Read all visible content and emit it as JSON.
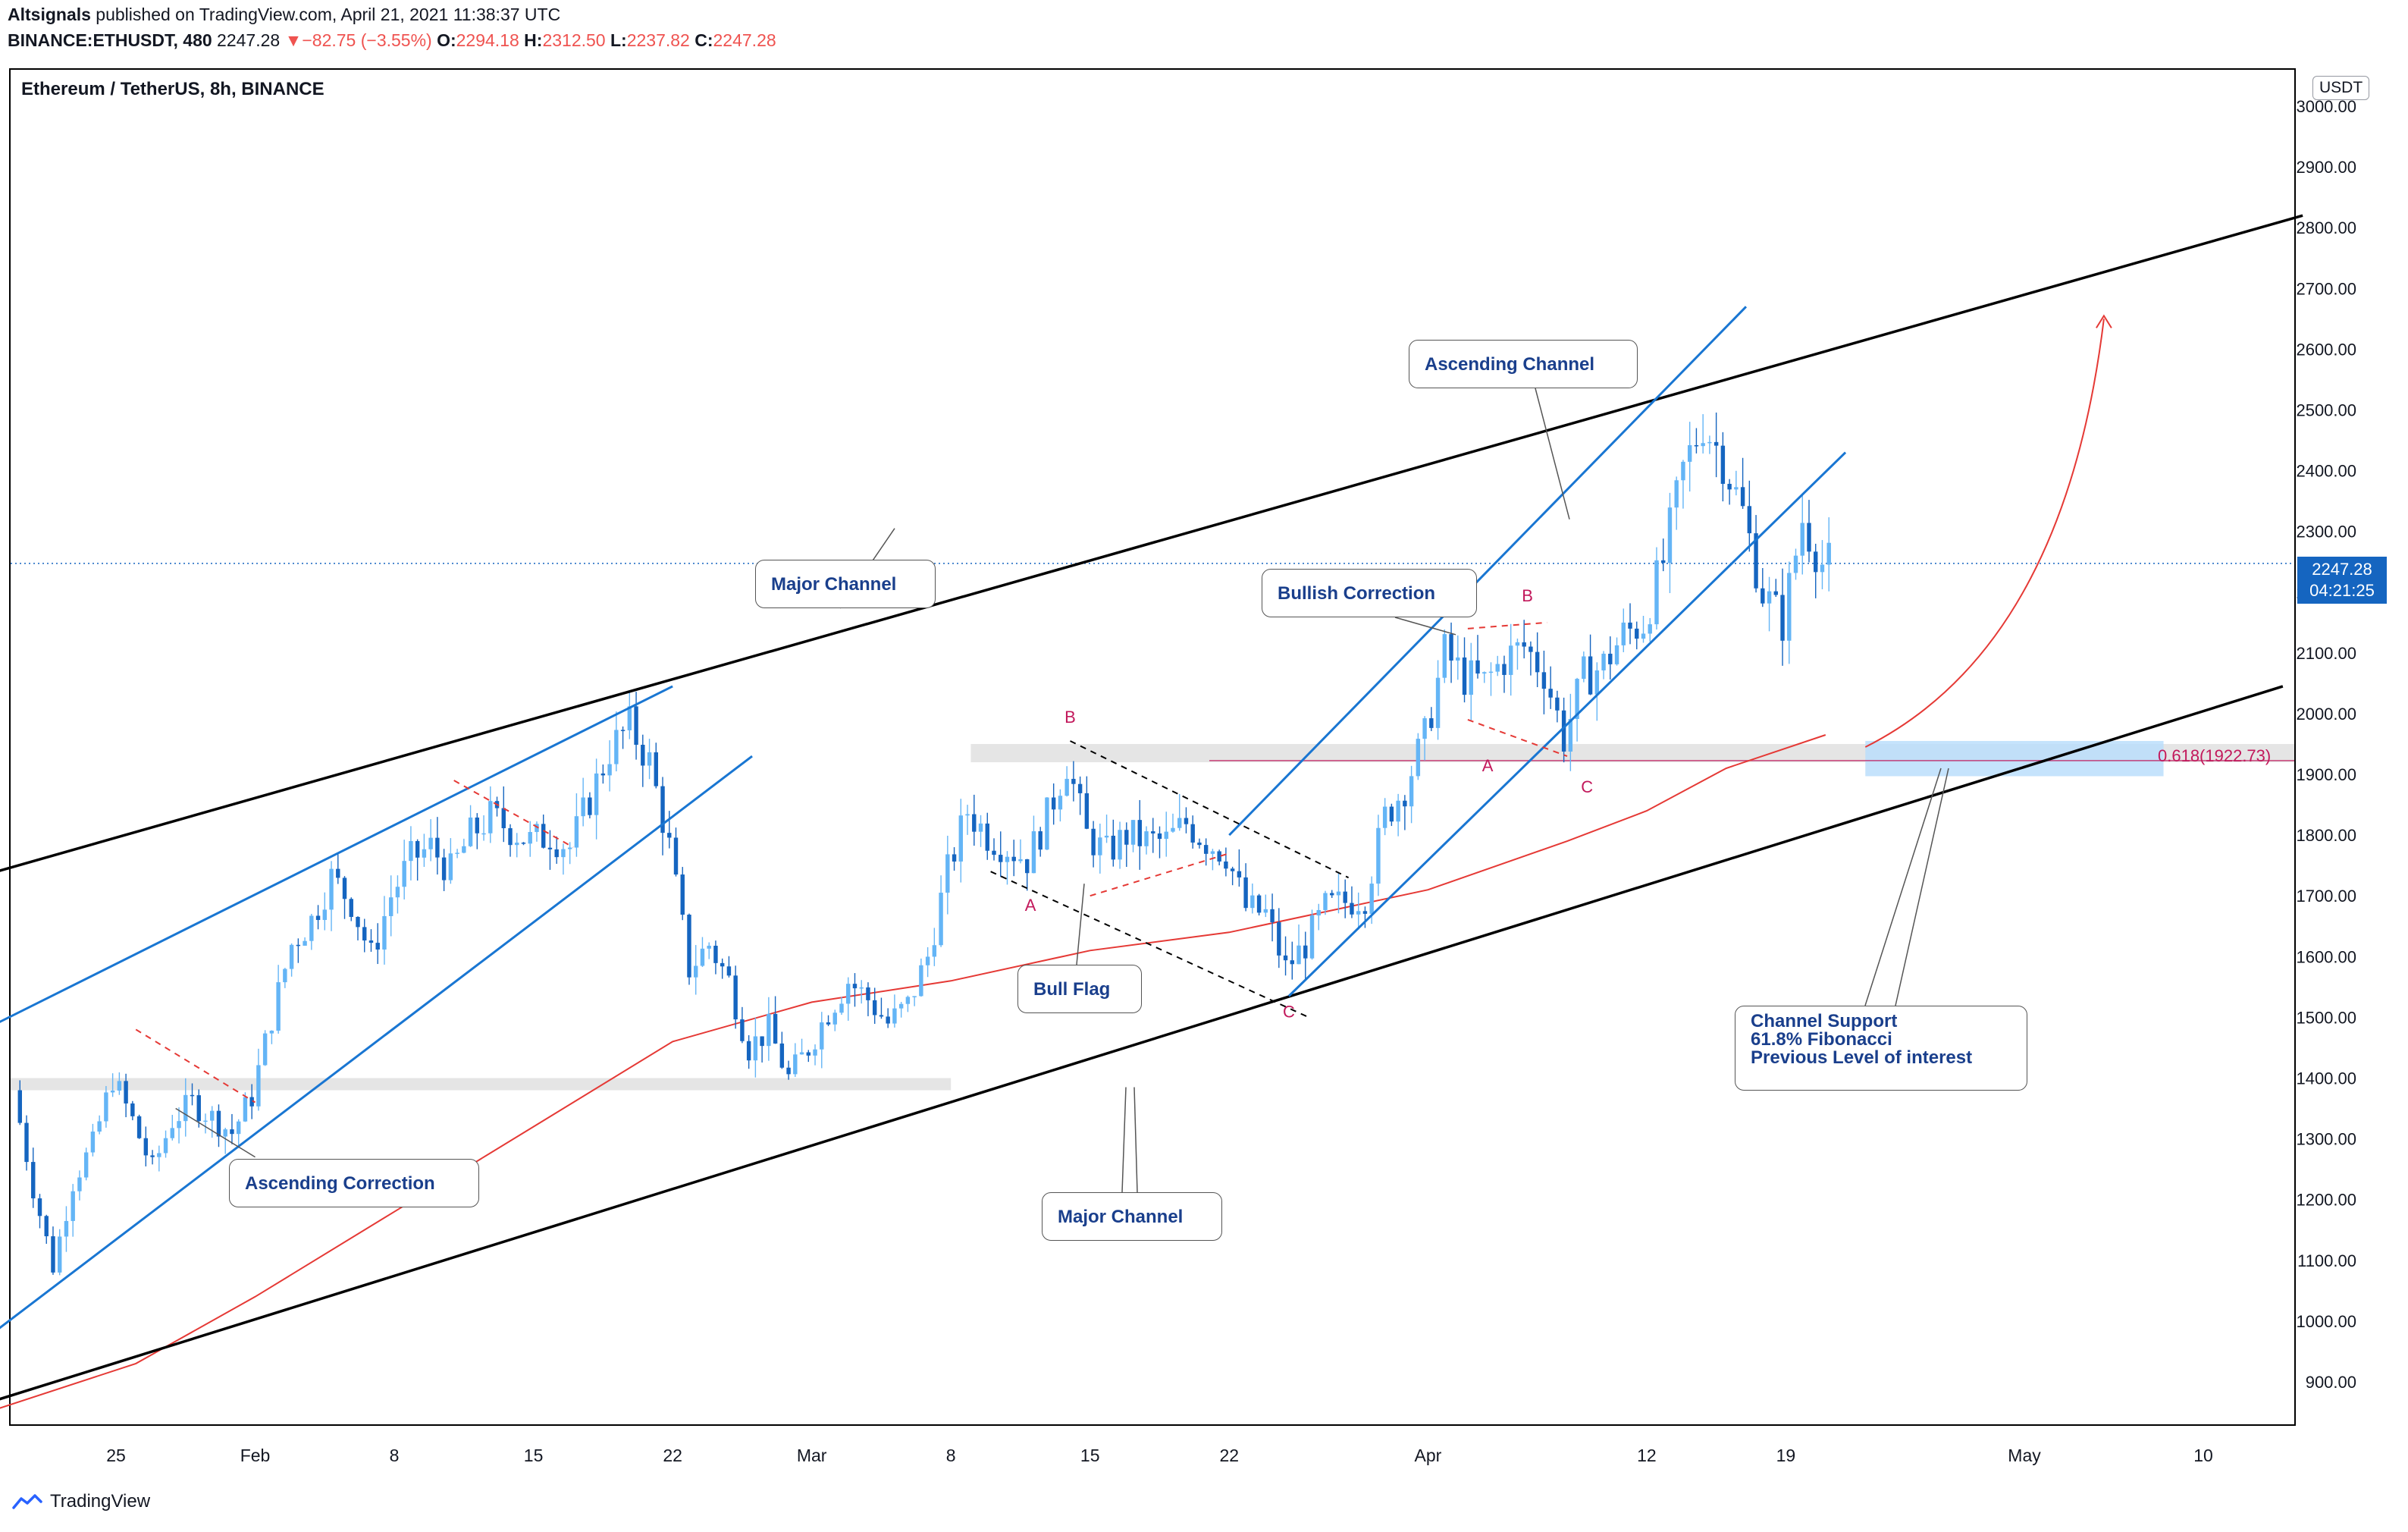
{
  "header": {
    "publisher": "Altsignals",
    "published_text": " published on TradingView.com, April 21, 2021 11:38:37 UTC",
    "symbol": "BINANCE:ETHUSDT, 480",
    "last": "2247.28",
    "change": "−82.75 (−3.55%)",
    "o_label": "O:",
    "o_value": "2294.18",
    "h_label": "H:",
    "h_value": "2312.50",
    "l_label": "L:",
    "l_value": "2237.82",
    "c_label": "C:",
    "c_value": "2247.28"
  },
  "chart_title": "Ethereum / TetherUS, 8h, BINANCE",
  "currency_badge": "USDT",
  "price_badge": {
    "price": "2247.28",
    "countdown": "04:21:25"
  },
  "fib_label": "0.618(1922.73)",
  "footer_brand": "TradingView",
  "annotations": {
    "ascending_correction": "Ascending Correction",
    "major_channel_top": "Major Channel",
    "major_channel_bottom": "Major Channel",
    "bull_flag": "Bull Flag",
    "bullish_correction": "Bullish Correction",
    "ascending_channel": "Ascending Channel",
    "channel_support": "Channel Support\n61.8% Fibonacci\nPrevious Level of interest"
  },
  "colors": {
    "up": "#64b5f6",
    "down": "#1565c0",
    "channel_blue": "#1976d2",
    "major_black": "#000000",
    "ma_red": "#e53935",
    "badge": "#1565c0",
    "fib": "#c2185b"
  },
  "chart_data": {
    "type": "candlestick",
    "title": "Ethereum / TetherUS, 8h, BINANCE",
    "ylim": [
      830,
      3060
    ],
    "y_ticks": [
      900,
      1000,
      1100,
      1200,
      1300,
      1400,
      1500,
      1600,
      1700,
      1800,
      1900,
      2000,
      2100,
      2200,
      2300,
      2400,
      2500,
      2600,
      2700,
      2800,
      2900,
      3000
    ],
    "x_ticks": [
      {
        "label": "25",
        "date": "2021-01-25"
      },
      {
        "label": "Feb",
        "date": "2021-02-01"
      },
      {
        "label": "8",
        "date": "2021-02-08"
      },
      {
        "label": "15",
        "date": "2021-02-15"
      },
      {
        "label": "22",
        "date": "2021-02-22"
      },
      {
        "label": "Mar",
        "date": "2021-03-01"
      },
      {
        "label": "8",
        "date": "2021-03-08"
      },
      {
        "label": "15",
        "date": "2021-03-15"
      },
      {
        "label": "22",
        "date": "2021-03-22"
      },
      {
        "label": "Apr",
        "date": "2021-04-01"
      },
      {
        "label": "12",
        "date": "2021-04-12"
      },
      {
        "label": "19",
        "date": "2021-04-19"
      },
      {
        "label": "May",
        "date": "2021-05-01"
      },
      {
        "label": "10",
        "date": "2021-05-10"
      }
    ],
    "last_price": 2247.28,
    "fib_level": 1922.73,
    "support_zones": [
      1380,
      1400,
      1920,
      1950
    ],
    "wave_labels": [
      {
        "text": "A",
        "date": "2021-03-12",
        "price": 1675
      },
      {
        "text": "B",
        "date": "2021-03-14",
        "price": 1985
      },
      {
        "text": "C",
        "date": "2021-03-25",
        "price": 1500
      },
      {
        "text": "A",
        "date": "2021-04-04",
        "price": 1905
      },
      {
        "text": "B",
        "date": "2021-04-06",
        "price": 2185
      },
      {
        "text": "C",
        "date": "2021-04-09",
        "price": 1870
      }
    ],
    "price_path": [
      {
        "date": "2021-01-20",
        "price": 1380
      },
      {
        "date": "2021-01-21",
        "price": 1220
      },
      {
        "date": "2021-01-22",
        "price": 1090
      },
      {
        "date": "2021-01-23",
        "price": 1230
      },
      {
        "date": "2021-01-24",
        "price": 1290
      },
      {
        "date": "2021-01-25",
        "price": 1400
      },
      {
        "date": "2021-01-26",
        "price": 1330
      },
      {
        "date": "2021-01-27",
        "price": 1250
      },
      {
        "date": "2021-01-28",
        "price": 1330
      },
      {
        "date": "2021-01-29",
        "price": 1360
      },
      {
        "date": "2021-01-31",
        "price": 1310
      },
      {
        "date": "2021-02-01",
        "price": 1370
      },
      {
        "date": "2021-02-02",
        "price": 1500
      },
      {
        "date": "2021-02-03",
        "price": 1620
      },
      {
        "date": "2021-02-04",
        "price": 1660
      },
      {
        "date": "2021-02-05",
        "price": 1730
      },
      {
        "date": "2021-02-06",
        "price": 1690
      },
      {
        "date": "2021-02-07",
        "price": 1600
      },
      {
        "date": "2021-02-08",
        "price": 1700
      },
      {
        "date": "2021-02-09",
        "price": 1760
      },
      {
        "date": "2021-02-10",
        "price": 1780
      },
      {
        "date": "2021-02-11",
        "price": 1740
      },
      {
        "date": "2021-02-12",
        "price": 1800
      },
      {
        "date": "2021-02-13",
        "price": 1830
      },
      {
        "date": "2021-02-14",
        "price": 1810
      },
      {
        "date": "2021-02-15",
        "price": 1790
      },
      {
        "date": "2021-02-16",
        "price": 1800
      },
      {
        "date": "2021-02-17",
        "price": 1780
      },
      {
        "date": "2021-02-18",
        "price": 1860
      },
      {
        "date": "2021-02-19",
        "price": 1940
      },
      {
        "date": "2021-02-20",
        "price": 1980
      },
      {
        "date": "2021-02-21",
        "price": 1920
      },
      {
        "date": "2021-02-22",
        "price": 1780
      },
      {
        "date": "2021-02-23",
        "price": 1580
      },
      {
        "date": "2021-02-24",
        "price": 1620
      },
      {
        "date": "2021-02-25",
        "price": 1560
      },
      {
        "date": "2021-02-26",
        "price": 1450
      },
      {
        "date": "2021-02-27",
        "price": 1480
      },
      {
        "date": "2021-02-28",
        "price": 1400
      },
      {
        "date": "2021-03-01",
        "price": 1450
      },
      {
        "date": "2021-03-02",
        "price": 1510
      },
      {
        "date": "2021-03-03",
        "price": 1560
      },
      {
        "date": "2021-03-04",
        "price": 1530
      },
      {
        "date": "2021-03-05",
        "price": 1490
      },
      {
        "date": "2021-03-06",
        "price": 1520
      },
      {
        "date": "2021-03-07",
        "price": 1600
      },
      {
        "date": "2021-03-08",
        "price": 1740
      },
      {
        "date": "2021-03-09",
        "price": 1840
      },
      {
        "date": "2021-03-10",
        "price": 1800
      },
      {
        "date": "2021-03-11",
        "price": 1780
      },
      {
        "date": "2021-03-12",
        "price": 1760
      },
      {
        "date": "2021-03-13",
        "price": 1830
      },
      {
        "date": "2021-03-14",
        "price": 1920
      },
      {
        "date": "2021-03-15",
        "price": 1800
      },
      {
        "date": "2021-03-16",
        "price": 1770
      },
      {
        "date": "2021-03-17",
        "price": 1800
      },
      {
        "date": "2021-03-18",
        "price": 1790
      },
      {
        "date": "2021-03-19",
        "price": 1790
      },
      {
        "date": "2021-03-20",
        "price": 1820
      },
      {
        "date": "2021-03-21",
        "price": 1790
      },
      {
        "date": "2021-03-22",
        "price": 1770
      },
      {
        "date": "2021-03-23",
        "price": 1680
      },
      {
        "date": "2021-03-24",
        "price": 1670
      },
      {
        "date": "2021-03-25",
        "price": 1580
      },
      {
        "date": "2021-03-26",
        "price": 1620
      },
      {
        "date": "2021-03-27",
        "price": 1680
      },
      {
        "date": "2021-03-28",
        "price": 1690
      },
      {
        "date": "2021-03-29",
        "price": 1700
      },
      {
        "date": "2021-03-30",
        "price": 1830
      },
      {
        "date": "2021-03-31",
        "price": 1880
      },
      {
        "date": "2021-04-01",
        "price": 1960
      },
      {
        "date": "2021-04-02",
        "price": 2100
      },
      {
        "date": "2021-04-03",
        "price": 2060
      },
      {
        "date": "2021-04-04",
        "price": 2050
      },
      {
        "date": "2021-04-05",
        "price": 2090
      },
      {
        "date": "2021-04-06",
        "price": 2110
      },
      {
        "date": "2021-04-07",
        "price": 2070
      },
      {
        "date": "2021-04-08",
        "price": 1960
      },
      {
        "date": "2021-04-09",
        "price": 2060
      },
      {
        "date": "2021-04-10",
        "price": 2080
      },
      {
        "date": "2021-04-11",
        "price": 2130
      },
      {
        "date": "2021-04-12",
        "price": 2150
      },
      {
        "date": "2021-04-13",
        "price": 2250
      },
      {
        "date": "2021-04-14",
        "price": 2400
      },
      {
        "date": "2021-04-15",
        "price": 2480
      },
      {
        "date": "2021-04-16",
        "price": 2420
      },
      {
        "date": "2021-04-17",
        "price": 2330
      },
      {
        "date": "2021-04-18",
        "price": 2200
      },
      {
        "date": "2021-04-19",
        "price": 2150
      },
      {
        "date": "2021-04-20",
        "price": 2320
      },
      {
        "date": "2021-04-21",
        "price": 2247
      }
    ],
    "moving_average": [
      {
        "date": "2021-01-19",
        "price": 855
      },
      {
        "date": "2021-01-26",
        "price": 930
      },
      {
        "date": "2021-02-01",
        "price": 1040
      },
      {
        "date": "2021-02-08",
        "price": 1180
      },
      {
        "date": "2021-02-15",
        "price": 1320
      },
      {
        "date": "2021-02-22",
        "price": 1460
      },
      {
        "date": "2021-03-01",
        "price": 1525
      },
      {
        "date": "2021-03-08",
        "price": 1560
      },
      {
        "date": "2021-03-15",
        "price": 1610
      },
      {
        "date": "2021-03-22",
        "price": 1640
      },
      {
        "date": "2021-04-01",
        "price": 1710
      },
      {
        "date": "2021-04-08",
        "price": 1790
      },
      {
        "date": "2021-04-12",
        "price": 1840
      },
      {
        "date": "2021-04-16",
        "price": 1910
      },
      {
        "date": "2021-04-21",
        "price": 1965
      }
    ]
  }
}
